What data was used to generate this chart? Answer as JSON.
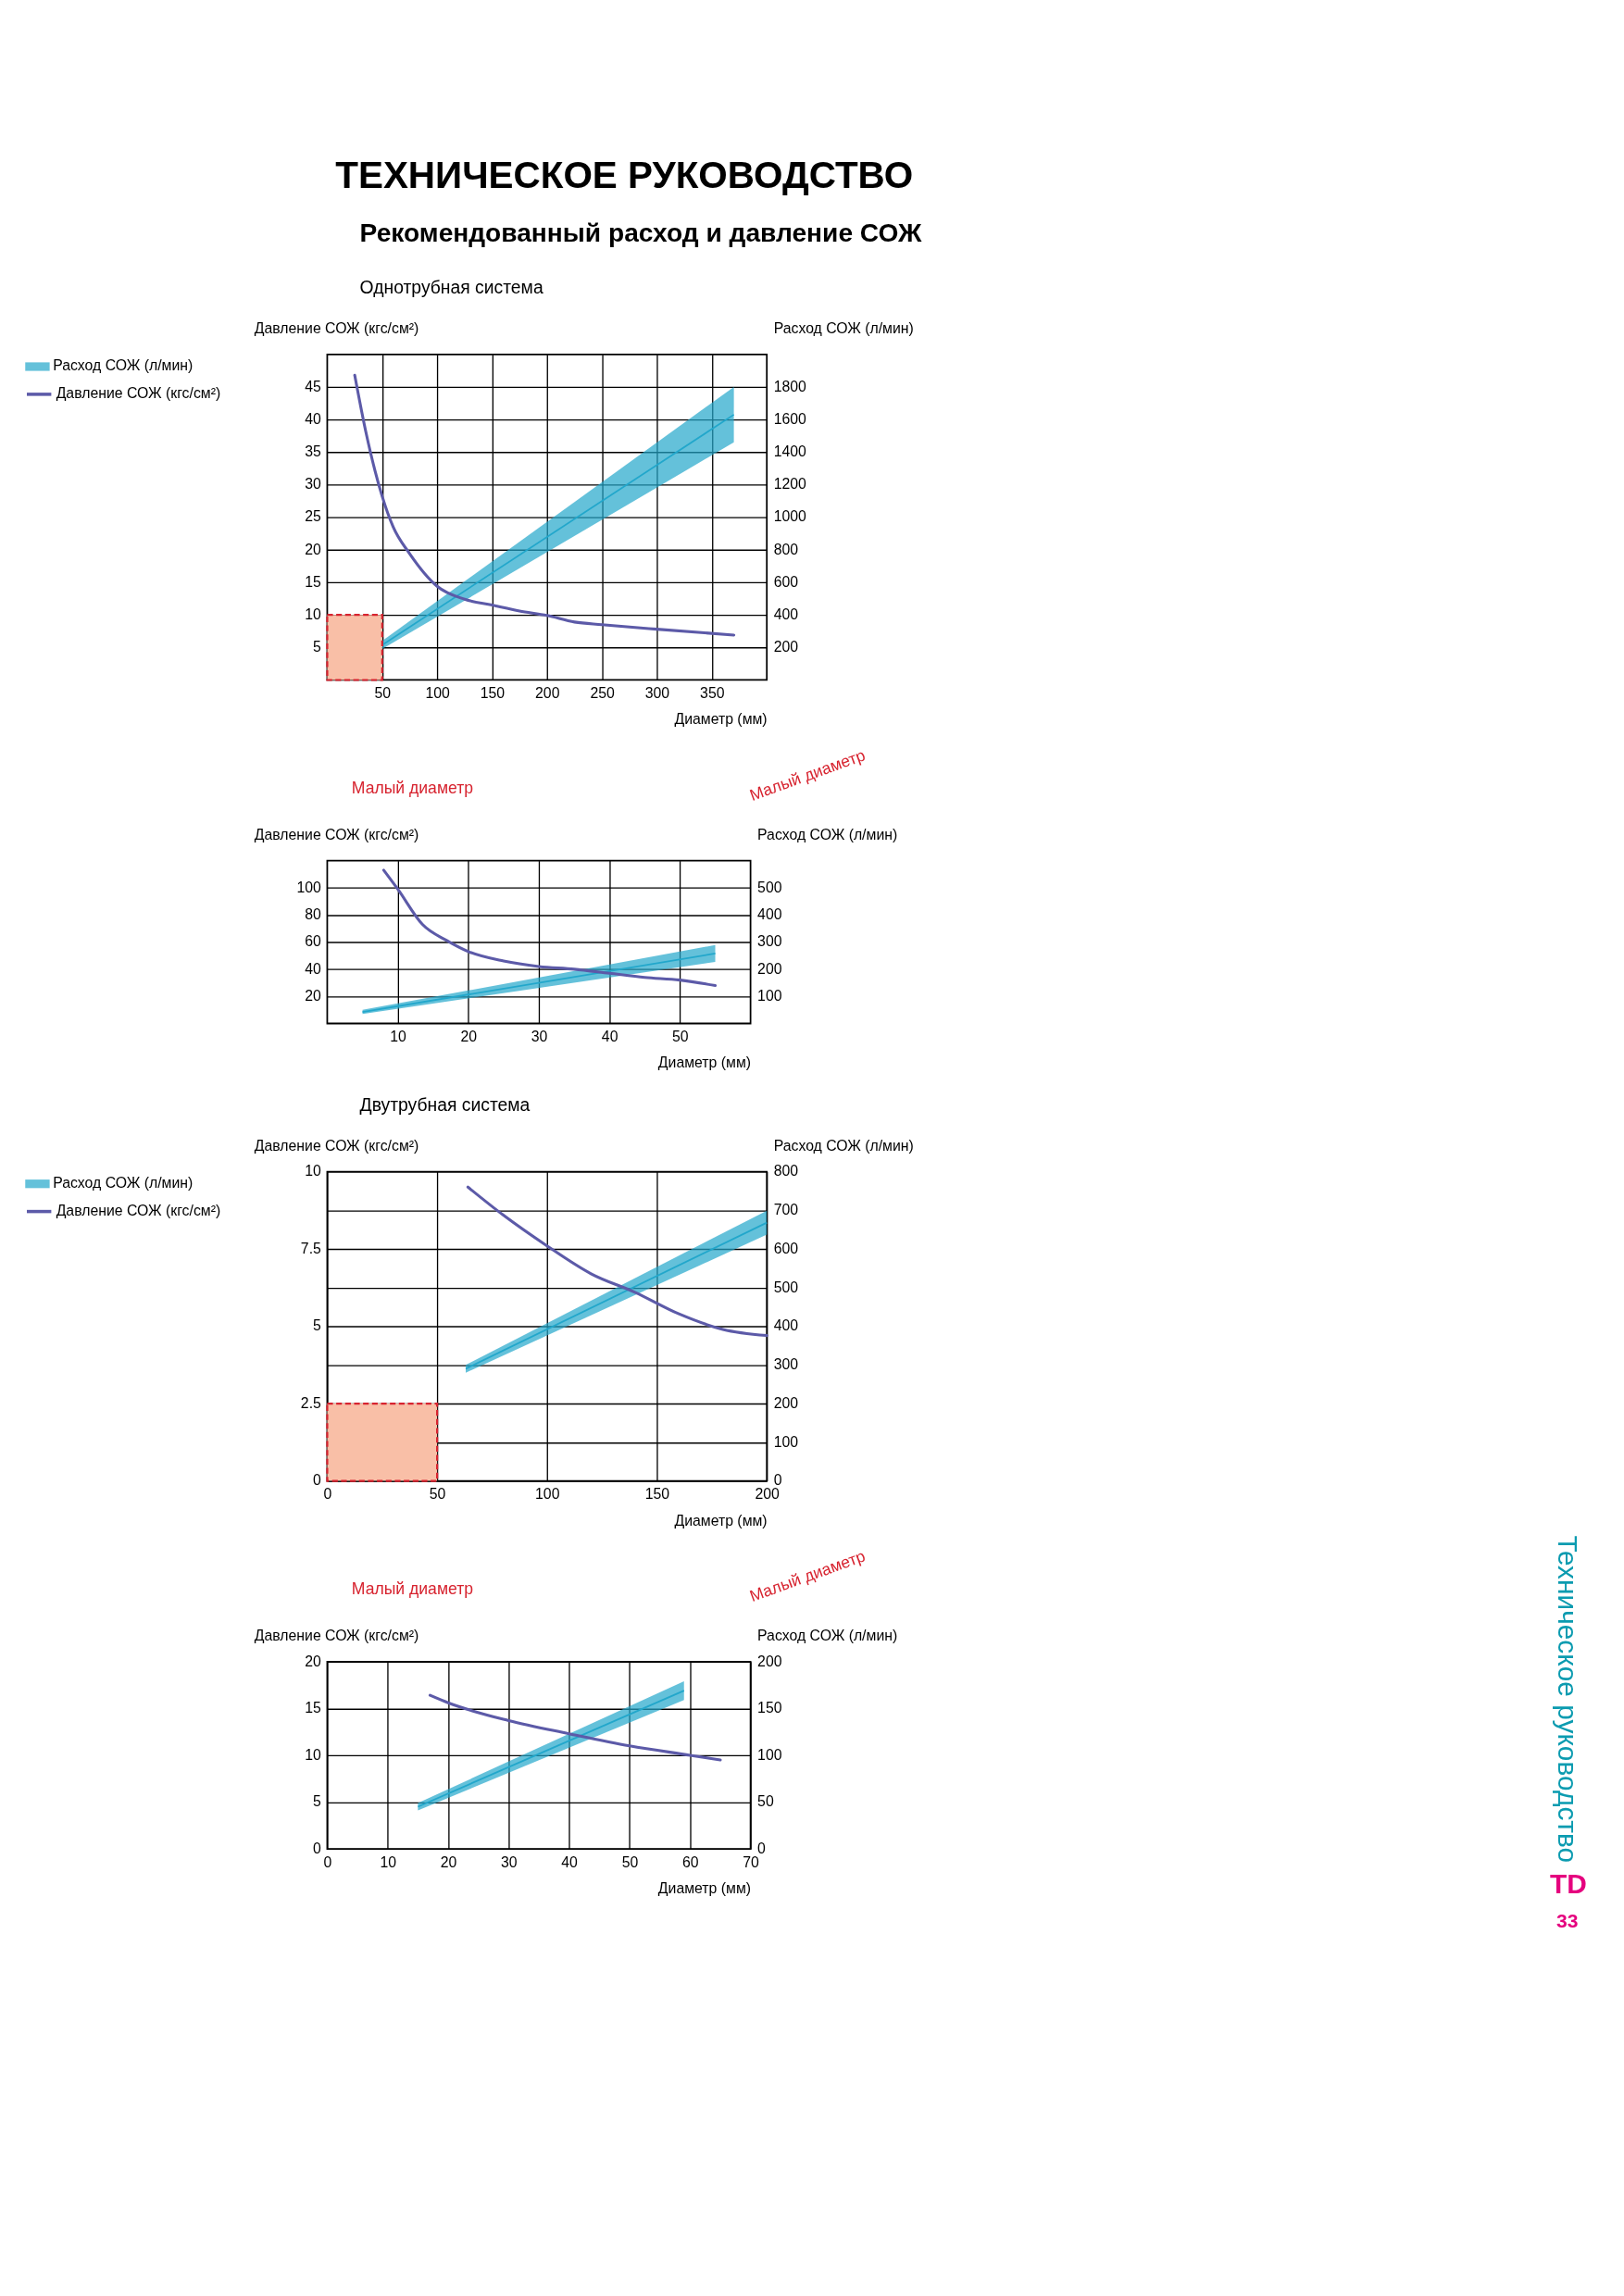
{
  "chart_data": [
    {
      "type": "line",
      "title": "Однотрубная система",
      "xlabel": "Диаметр (мм)",
      "ylabel": "Давление СОЖ (кгс/см²)",
      "y2label": "Расход СОЖ (л/мин)",
      "annotations": [
        "ТЕХНИЧЕСКОЕ РУКОВОДСТВО",
        "Рекомендованный расход и давление СОЖ",
        "Малый диаметр",
        "Малый диаметр",
        "Техническое руководство",
        "TD",
        "33"
      ],
      "xlim": [
        0,
        400
      ],
      "xticks": [
        50,
        100,
        150,
        200,
        250,
        300,
        350
      ],
      "ylim": [
        0,
        50
      ],
      "yticks": [
        5,
        10,
        15,
        20,
        25,
        30,
        35,
        40,
        45
      ],
      "y2lim": [
        0,
        2000
      ],
      "y2ticks": [
        200,
        400,
        600,
        800,
        1000,
        1200,
        1400,
        1600,
        1800
      ],
      "grid": true,
      "legend": "top left",
      "series": [
        {
          "name": "Расход СОЖ (л/мин)",
          "axis": "y2",
          "color": "#22a7cb",
          "x": [
            50,
            370
          ],
          "lower": [
            190,
            1460
          ],
          "upper": [
            240,
            1800
          ],
          "values": [
            215,
            1630
          ]
        },
        {
          "name": "Давление СОЖ (кгс/см²)",
          "axis": "y",
          "color": "#5c5aa8",
          "x": [
            25,
            35,
            50,
            60,
            75,
            100,
            125,
            150,
            175,
            200,
            225,
            250,
            300,
            370
          ],
          "values": [
            46.8,
            38.2,
            28.2,
            23.5,
            19.4,
            14.4,
            12.4,
            11.5,
            10.6,
            9.9,
            8.9,
            8.5,
            7.8,
            6.9
          ]
        },
        {
          "type": "area",
          "axis": "y",
          "color": "#f9bfa7",
          "line_style": "dashed",
          "x": [
            0,
            50
          ],
          "values": [
            10,
            10
          ]
        }
      ]
    },
    {
      "type": "line",
      "xlabel": "Диаметр (мм)",
      "ylabel": "Давление СОЖ (кгс/см²)",
      "y2label": "Расход СОЖ (л/мин)",
      "xlim": [
        0,
        60
      ],
      "xticks": [
        10,
        20,
        30,
        40,
        50
      ],
      "ylim": [
        0,
        120
      ],
      "yticks": [
        20,
        40,
        60,
        80,
        100
      ],
      "y2lim": [
        0,
        600
      ],
      "y2ticks": [
        100,
        200,
        300,
        400,
        500
      ],
      "grid": true,
      "series": [
        {
          "axis": "y2",
          "color": "#22a7cb",
          "x": [
            5,
            55
          ],
          "lower": [
            35,
            227
          ],
          "upper": [
            50,
            289
          ],
          "values": [
            42,
            258
          ]
        },
        {
          "axis": "y",
          "color": "#5c5aa8",
          "x": [
            8,
            10,
            13.5,
            17,
            20,
            25,
            30,
            35,
            40,
            45,
            50,
            55
          ],
          "values": [
            113,
            99,
            73,
            61,
            53,
            46,
            42,
            40,
            37,
            34,
            32,
            28
          ]
        }
      ]
    },
    {
      "type": "line",
      "title": "Двутрубная система",
      "xlabel": "Диаметр (мм)",
      "ylabel": "Давление СОЖ (кгс/см²)",
      "y2label": "Расход СОЖ (л/мин)",
      "annotations": [
        "Малый диаметр",
        "Малый диаметр"
      ],
      "xlim": [
        0,
        200
      ],
      "xticks": [
        0,
        50,
        100,
        150,
        200
      ],
      "ylim": [
        0,
        10
      ],
      "yticks": [
        0,
        {
          "value": 1.25,
          "label": null
        },
        2.5,
        {
          "value": 3.75,
          "label": null
        },
        5,
        {
          "value": 6.25,
          "label": null
        },
        7.5,
        {
          "value": 8.75,
          "label": null
        },
        10
      ],
      "y2lim": [
        0,
        800
      ],
      "y2ticks": [
        0,
        100,
        200,
        300,
        400,
        500,
        600,
        700,
        800
      ],
      "grid": true,
      "legend": "top left",
      "series": [
        {
          "name": "Расход СОЖ (л/мин)",
          "axis": "y2",
          "color": "#22a7cb",
          "x": [
            63,
            200
          ],
          "lower": [
            280,
            637
          ],
          "upper": [
            300,
            699
          ],
          "values": [
            290,
            668
          ]
        },
        {
          "name": "Давление СОЖ (кгс/см²)",
          "axis": "y",
          "color": "#5c5aa8",
          "x": [
            64,
            80,
            100,
            120,
            140,
            160,
            180,
            200
          ],
          "values": [
            9.5,
            8.6,
            7.6,
            6.7,
            6.1,
            5.4,
            4.9,
            4.7
          ]
        },
        {
          "type": "area",
          "axis": "y",
          "color": "#f9bfa7",
          "line_style": "dashed",
          "x": [
            0,
            50
          ],
          "values": [
            2.5,
            2.5
          ]
        }
      ]
    },
    {
      "type": "line",
      "xlabel": "Диаметр (мм)",
      "ylabel": "Давление СОЖ (кгс/см²)",
      "y2label": "Расход СОЖ (л/мин)",
      "xlim": [
        0,
        70
      ],
      "xticks": [
        0,
        10,
        20,
        30,
        40,
        50,
        60,
        70
      ],
      "ylim": [
        0,
        20
      ],
      "yticks": [
        0,
        5,
        10,
        15,
        20
      ],
      "y2lim": [
        0,
        200
      ],
      "y2ticks": [
        0,
        50,
        100,
        150,
        200
      ],
      "grid": true,
      "series": [
        {
          "axis": "y2",
          "color": "#22a7cb",
          "x": [
            15,
            59
          ],
          "lower": [
            41,
            159
          ],
          "upper": [
            49,
            179
          ],
          "values": [
            45,
            169
          ]
        },
        {
          "axis": "y",
          "color": "#5c5aa8",
          "x": [
            17,
            20,
            30,
            40,
            50,
            60,
            65
          ],
          "values": [
            16.4,
            15.6,
            13.7,
            12.3,
            11.0,
            10.0,
            9.5
          ]
        }
      ]
    }
  ]
}
